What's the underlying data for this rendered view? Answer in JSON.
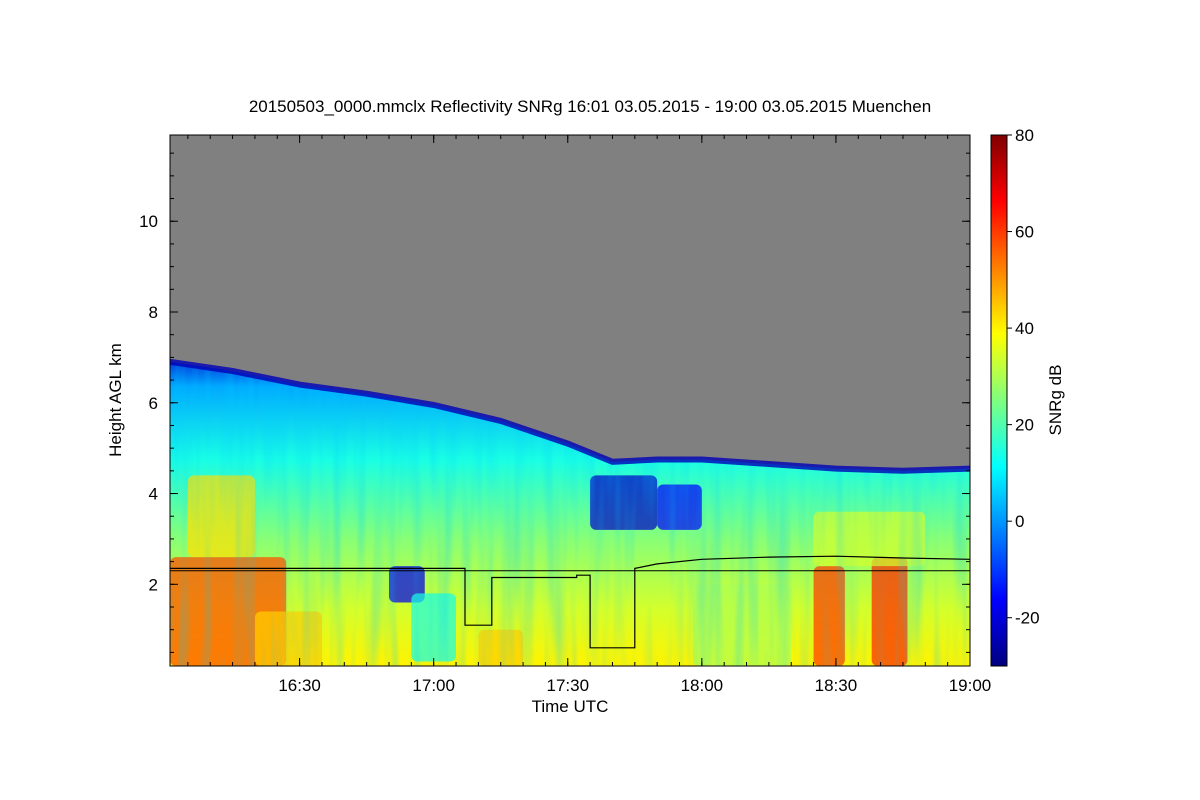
{
  "chart_data": {
    "type": "heatmap",
    "title": "20150503_0000.mmclx Reflectivity SNRg   16:01 03.05.2015 - 19:00 03.05.2015 Muenchen",
    "xlabel": "Time UTC",
    "ylabel": "Height AGL km",
    "colorbar_label": "SNRg dB",
    "x_range": [
      "16:01",
      "19:00"
    ],
    "x_ticks": [
      "16:30",
      "17:00",
      "17:30",
      "18:00",
      "18:30",
      "19:00"
    ],
    "y_range": [
      0.2,
      11.9
    ],
    "y_ticks": [
      2,
      4,
      6,
      8,
      10
    ],
    "colorbar_range": [
      -30,
      80
    ],
    "colorbar_ticks": [
      -20,
      0,
      20,
      40,
      60,
      80
    ],
    "no_signal_color": "#808080",
    "colormap": [
      "#00007f",
      "#0000ff",
      "#007fff",
      "#00ffff",
      "#7fff7f",
      "#ffff00",
      "#ff7f00",
      "#ff0000",
      "#7f0000"
    ],
    "echo_top_km": [
      [
        "16:01",
        6.9
      ],
      [
        "16:15",
        6.7
      ],
      [
        "16:30",
        6.4
      ],
      [
        "16:45",
        6.2
      ],
      [
        "17:00",
        5.95
      ],
      [
        "17:15",
        5.6
      ],
      [
        "17:30",
        5.1
      ],
      [
        "17:40",
        4.7
      ],
      [
        "17:50",
        4.75
      ],
      [
        "18:00",
        4.75
      ],
      [
        "18:15",
        4.65
      ],
      [
        "18:30",
        4.55
      ],
      [
        "18:45",
        4.5
      ],
      [
        "19:00",
        4.55
      ]
    ],
    "reference_line_km": 2.3,
    "step_line_km": [
      [
        "16:01",
        2.35
      ],
      [
        "17:07",
        2.35
      ],
      [
        "17:07",
        1.1
      ],
      [
        "17:13",
        1.1
      ],
      [
        "17:13",
        2.15
      ],
      [
        "17:32",
        2.15
      ],
      [
        "17:32",
        2.2
      ],
      [
        "17:35",
        2.2
      ],
      [
        "17:35",
        0.6
      ],
      [
        "17:45",
        0.6
      ],
      [
        "17:45",
        2.35
      ],
      [
        "17:50",
        2.45
      ],
      [
        "18:00",
        2.55
      ],
      [
        "18:15",
        2.6
      ],
      [
        "18:30",
        2.62
      ],
      [
        "18:45",
        2.58
      ],
      [
        "19:00",
        2.55
      ]
    ]
  }
}
